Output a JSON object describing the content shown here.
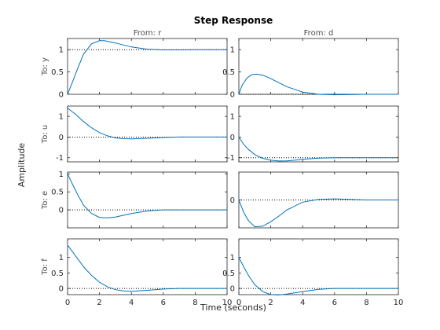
{
  "chart_data": {
    "type": "line",
    "title": "Step Response",
    "xlabel": "Time (seconds)",
    "ylabel": "Amplitude",
    "xlim": [
      0,
      10
    ],
    "xticks": [
      0,
      2,
      4,
      6,
      8,
      10
    ],
    "columns": [
      "From: r",
      "From: d"
    ],
    "rows": [
      "To: y",
      "To: u",
      "To: e",
      "To: f"
    ],
    "line_color": "#0072bd",
    "grid": false,
    "subplots": [
      {
        "row": 0,
        "col": 0,
        "ylim": [
          0,
          1.25
        ],
        "yticks": [
          0,
          0.5,
          1
        ],
        "ref": 1,
        "x": [
          0,
          0.3,
          0.6,
          1,
          1.5,
          2,
          2.3,
          3,
          4,
          5,
          6,
          7,
          8,
          10
        ],
        "y": [
          0,
          0.27,
          0.55,
          0.9,
          1.13,
          1.2,
          1.2,
          1.15,
          1.06,
          1.01,
          0.995,
          0.995,
          1.0,
          1.0
        ]
      },
      {
        "row": 0,
        "col": 1,
        "ylim": [
          0,
          1.25
        ],
        "yticks": [
          0,
          0.5,
          1
        ],
        "ref": 0,
        "x": [
          0,
          0.2,
          0.5,
          0.8,
          1.1,
          1.5,
          2,
          3,
          4,
          5,
          6,
          8,
          10
        ],
        "y": [
          0,
          0.2,
          0.36,
          0.44,
          0.45,
          0.43,
          0.35,
          0.17,
          0.05,
          0.0,
          -0.01,
          0,
          0
        ]
      },
      {
        "row": 1,
        "col": 0,
        "ylim": [
          -1.2,
          1.5
        ],
        "yticks": [
          -1,
          0,
          1
        ],
        "ref": 0,
        "x": [
          0,
          0.5,
          1,
          1.5,
          2,
          2.5,
          3,
          3.5,
          4,
          5,
          6,
          7,
          8,
          10
        ],
        "y": [
          1.4,
          1.1,
          0.75,
          0.45,
          0.22,
          0.06,
          -0.04,
          -0.08,
          -0.09,
          -0.06,
          -0.02,
          0,
          0,
          0
        ]
      },
      {
        "row": 1,
        "col": 1,
        "ylim": [
          -1.2,
          1.5
        ],
        "yticks": [
          -1,
          0,
          1
        ],
        "ref": -1,
        "x": [
          0,
          0.3,
          0.6,
          1,
          1.5,
          2,
          2.5,
          3,
          3.5,
          4,
          5,
          6,
          8,
          10
        ],
        "y": [
          0,
          -0.35,
          -0.6,
          -0.85,
          -1.03,
          -1.12,
          -1.16,
          -1.15,
          -1.12,
          -1.08,
          -1.02,
          -1.0,
          -1.0,
          -1.0
        ]
      },
      {
        "row": 2,
        "col": 0,
        "ylim": [
          -0.5,
          1.05
        ],
        "yticks": [
          0,
          0.5,
          1
        ],
        "ref": 0,
        "x": [
          0,
          0.3,
          0.6,
          1,
          1.5,
          2,
          2.5,
          3,
          4,
          5,
          6,
          7,
          8,
          10
        ],
        "y": [
          1.0,
          0.72,
          0.45,
          0.13,
          -0.1,
          -0.21,
          -0.22,
          -0.2,
          -0.1,
          -0.03,
          0.0,
          0.0,
          0.0,
          0.0
        ]
      },
      {
        "row": 2,
        "col": 1,
        "ylim": [
          -0.5,
          0.5
        ],
        "yticks": [
          0
        ],
        "ref": 0,
        "x": [
          0,
          0.3,
          0.6,
          1,
          1.5,
          2,
          2.5,
          3,
          4,
          5,
          6,
          7,
          8,
          10
        ],
        "y": [
          0,
          -0.22,
          -0.37,
          -0.48,
          -0.47,
          -0.39,
          -0.29,
          -0.18,
          -0.04,
          0.01,
          0.02,
          0.01,
          0,
          0
        ]
      },
      {
        "row": 3,
        "col": 0,
        "ylim": [
          -0.2,
          1.6
        ],
        "yticks": [
          0,
          0.5,
          1
        ],
        "ref": 0,
        "x": [
          0,
          0.5,
          1,
          1.5,
          2,
          2.5,
          3,
          3.5,
          4,
          5,
          6,
          7,
          8,
          10
        ],
        "y": [
          1.4,
          1.05,
          0.7,
          0.42,
          0.2,
          0.05,
          -0.04,
          -0.08,
          -0.09,
          -0.06,
          -0.02,
          0,
          0,
          0
        ]
      },
      {
        "row": 3,
        "col": 1,
        "ylim": [
          -0.2,
          1.6
        ],
        "yticks": [
          0,
          0.5,
          1
        ],
        "ref": 0,
        "x": [
          0,
          0.3,
          0.6,
          1,
          1.5,
          2,
          2.5,
          3,
          4,
          5,
          6,
          7,
          8,
          10
        ],
        "y": [
          1.0,
          0.7,
          0.42,
          0.12,
          -0.1,
          -0.2,
          -0.21,
          -0.18,
          -0.1,
          -0.03,
          0.0,
          0.0,
          0.0,
          0.0
        ]
      }
    ]
  }
}
